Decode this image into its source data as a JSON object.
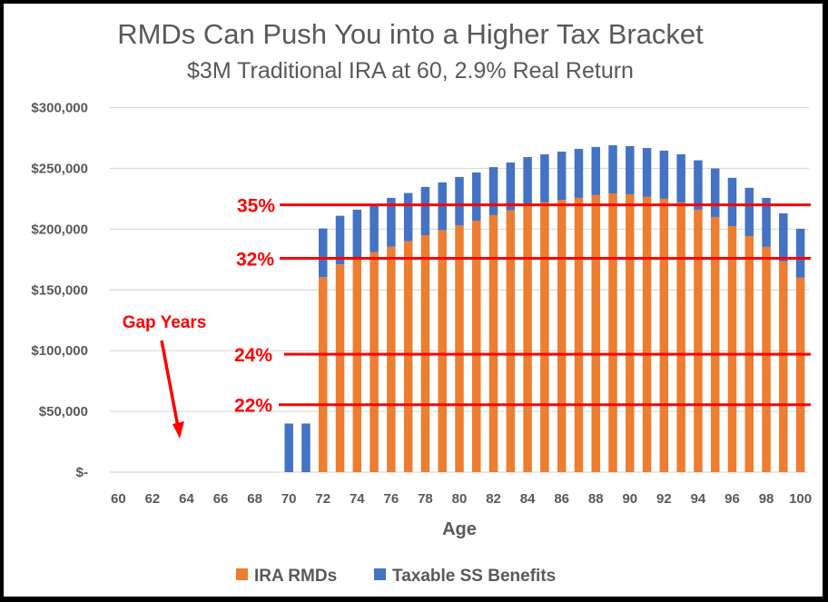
{
  "chart_data": {
    "type": "bar",
    "stacked": true,
    "title": "RMDs Can Push You into a Higher Tax Bracket",
    "subtitle": "$3M Traditional IRA at 60, 2.9% Real Return",
    "xlabel": "Age",
    "ylabel": "",
    "ylim": [
      0,
      300000
    ],
    "grid": true,
    "legend_position": "bottom",
    "y_ticks": [
      {
        "value": 0,
        "label": "$-"
      },
      {
        "value": 50000,
        "label": "$50,000"
      },
      {
        "value": 100000,
        "label": "$100,000"
      },
      {
        "value": 150000,
        "label": "$150,000"
      },
      {
        "value": 200000,
        "label": "$200,000"
      },
      {
        "value": 250000,
        "label": "$250,000"
      },
      {
        "value": 300000,
        "label": "$300,000"
      }
    ],
    "x_tick_labels": [
      "60",
      "62",
      "64",
      "66",
      "68",
      "70",
      "72",
      "74",
      "76",
      "78",
      "80",
      "82",
      "84",
      "86",
      "88",
      "90",
      "92",
      "94",
      "96",
      "98",
      "100"
    ],
    "categories": [
      60,
      61,
      62,
      63,
      64,
      65,
      66,
      67,
      68,
      69,
      70,
      71,
      72,
      73,
      74,
      75,
      76,
      77,
      78,
      79,
      80,
      81,
      82,
      83,
      84,
      85,
      86,
      87,
      88,
      89,
      90,
      91,
      92,
      93,
      94,
      95,
      96,
      97,
      98,
      99,
      100
    ],
    "series": [
      {
        "name": "IRA RMDs",
        "color": "#ED7D31",
        "values": [
          0,
          0,
          0,
          0,
          0,
          0,
          0,
          0,
          0,
          0,
          0,
          0,
          160500,
          171000,
          177000,
          181000,
          185500,
          190000,
          195000,
          199000,
          203000,
          207000,
          211500,
          215500,
          220500,
          222000,
          224000,
          225700,
          228000,
          229400,
          228700,
          226500,
          225000,
          222000,
          216000,
          210000,
          202500,
          194300,
          185400,
          173400,
          160000
        ]
      },
      {
        "name": "Taxable SS Benefits",
        "color": "#4472C4",
        "values": [
          0,
          0,
          0,
          0,
          0,
          0,
          0,
          0,
          0,
          0,
          40000,
          40000,
          40000,
          40000,
          39000,
          39000,
          40200,
          39700,
          39700,
          39400,
          39900,
          39600,
          39500,
          39400,
          38800,
          39600,
          39800,
          40300,
          39600,
          39600,
          39600,
          40300,
          39600,
          39600,
          40600,
          39900,
          39700,
          39700,
          40300,
          39600,
          40300
        ]
      }
    ],
    "reference_lines": [
      {
        "label": "35%",
        "value": 220000,
        "color": "#FF0000"
      },
      {
        "label": "32%",
        "value": 176000,
        "color": "#FF0000"
      },
      {
        "label": "24%",
        "value": 97000,
        "color": "#FF0000"
      },
      {
        "label": "22%",
        "value": 55500,
        "color": "#FF0000"
      }
    ],
    "annotations": [
      {
        "text": "Gap Years",
        "color": "#FF0000",
        "arrow_to_age": 63.5
      }
    ]
  }
}
